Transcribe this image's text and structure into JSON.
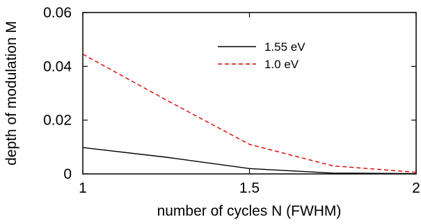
{
  "chart_data": {
    "type": "line",
    "title": "",
    "xlabel": "number of cycles N (FWHM)",
    "ylabel": "depth of modulation M",
    "xlim": [
      1,
      2
    ],
    "ylim": [
      0,
      0.06
    ],
    "x_ticks": [
      1,
      1.5,
      2
    ],
    "x_tick_labels": [
      "1",
      "1.5",
      "2"
    ],
    "y_ticks": [
      0,
      0.02,
      0.04,
      0.06
    ],
    "y_tick_labels": [
      "0",
      "0.02",
      "0.04",
      "0.06"
    ],
    "grid": false,
    "legend_position": "top-right",
    "series": [
      {
        "name": "1.55 eV",
        "color": "#000000",
        "style": "solid",
        "x": [
          1,
          1.25,
          1.5,
          1.75,
          2
        ],
        "y": [
          0.0098,
          0.0062,
          0.002,
          0.0003,
          0.0001
        ]
      },
      {
        "name": "1.0 eV",
        "color": "#dd0000",
        "style": "dashed",
        "x": [
          1,
          1.25,
          1.5,
          1.75,
          2
        ],
        "y": [
          0.0445,
          0.0275,
          0.011,
          0.003,
          0.0006
        ]
      }
    ]
  }
}
